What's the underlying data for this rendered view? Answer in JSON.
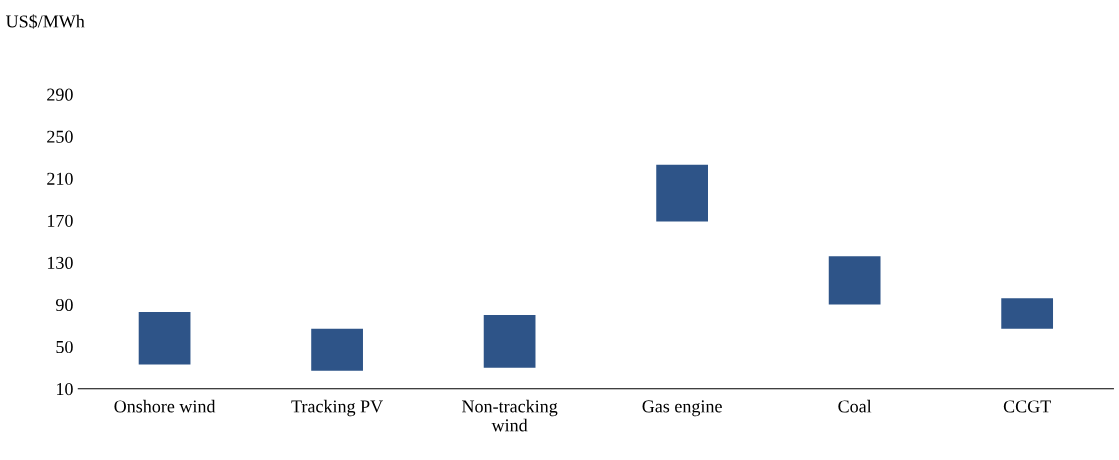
{
  "chart_data": {
    "type": "bar",
    "ylabel": "US$/MWh",
    "categories": [
      "Onshore wind",
      "Tracking PV",
      "Non-tracking\nwind",
      "Gas engine",
      "Coal",
      "CCGT"
    ],
    "base": [
      33,
      27,
      30,
      169,
      90,
      67
    ],
    "values": [
      50,
      40,
      50,
      54,
      46,
      29
    ],
    "color": "#2e5488",
    "ylim": [
      10,
      290
    ],
    "yticks": [
      10,
      50,
      90,
      130,
      170,
      210,
      250,
      290
    ],
    "grid": false
  }
}
